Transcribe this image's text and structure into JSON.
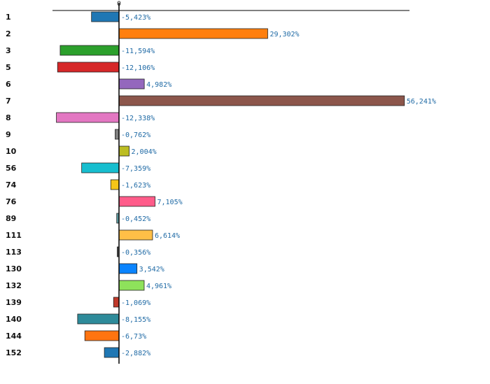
{
  "chart_data": {
    "type": "bar",
    "orientation": "horizontal",
    "zero_tick_label": "0",
    "categories": [
      "1",
      "2",
      "3",
      "5",
      "6",
      "7",
      "8",
      "9",
      "10",
      "56",
      "74",
      "76",
      "89",
      "111",
      "113",
      "130",
      "132",
      "139",
      "140",
      "144",
      "152"
    ],
    "values": [
      -5.423,
      29.302,
      -11.594,
      -12.106,
      4.982,
      56.241,
      -12.338,
      -0.762,
      2.004,
      -7.359,
      -1.623,
      7.105,
      -0.452,
      6.614,
      -0.356,
      3.542,
      4.961,
      -1.069,
      -8.155,
      -6.73,
      -2.882
    ],
    "value_labels": [
      "-5,423%",
      "29,302%",
      "-11,594%",
      "-12,106%",
      "4,982%",
      "56,241%",
      "-12,338%",
      "-0,762%",
      "2,004%",
      "-7,359%",
      "-1,623%",
      "7,105%",
      "-0,452%",
      "6,614%",
      "-0,356%",
      "3,542%",
      "4,961%",
      "-1,069%",
      "-8,155%",
      "-6,73%",
      "-2,882%"
    ],
    "colors": [
      "#1f77b4",
      "#ff7f0e",
      "#2ca02c",
      "#d62728",
      "#9467bd",
      "#8c564b",
      "#e377c2",
      "#7f7f7f",
      "#bcbd22",
      "#17becf",
      "#f5c518",
      "#ff5c8a",
      "#5b9aa0",
      "#ffbf47",
      "#555555",
      "#0a84ff",
      "#8ee25b",
      "#c0392b",
      "#2e8b9a",
      "#ff7410",
      "#1f77b4"
    ],
    "xlim": [
      -13,
      57
    ],
    "grid": false,
    "legend": "none"
  }
}
